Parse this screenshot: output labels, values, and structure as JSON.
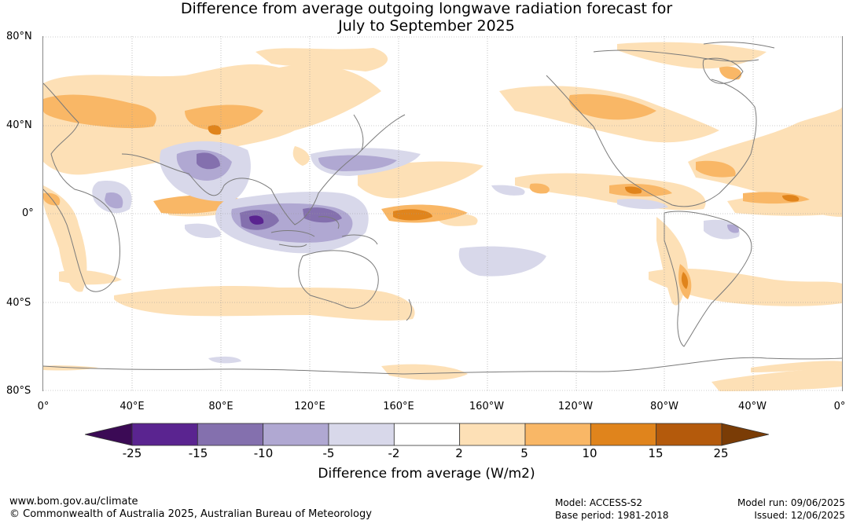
{
  "title_line1": "Difference from average outgoing longwave radiation forecast for",
  "title_line2": "July to September 2025",
  "map": {
    "lat_labels": [
      "80°N",
      "40°N",
      "0°",
      "40°S",
      "80°S"
    ],
    "lon_labels": [
      "0°",
      "40°E",
      "80°E",
      "120°E",
      "160°E",
      "160°W",
      "120°W",
      "80°W",
      "40°W",
      "0°"
    ],
    "grid": true
  },
  "colorbar": {
    "title": "Difference from average (W/m2)",
    "ticks": [
      "-25",
      "-15",
      "-10",
      "-5",
      "-2",
      "2",
      "5",
      "10",
      "15",
      "25"
    ],
    "colors": [
      "#3b0a55",
      "#5a2490",
      "#8470ae",
      "#b0a8d2",
      "#d8d8ea",
      "#ffffff",
      "#fde0b6",
      "#f9b766",
      "#e0841c",
      "#b45a0c",
      "#7a3c06"
    ]
  },
  "footer": {
    "website": "www.bom.gov.au/climate",
    "copyright": "© Commonwealth of Australia 2025, Australian Bureau of Meteorology",
    "model": "Model: ACCESS-S2",
    "base_period": "Base period: 1981-2018",
    "model_run": "Model run: 09/06/2025",
    "issued": "Issued: 12/06/2025"
  }
}
